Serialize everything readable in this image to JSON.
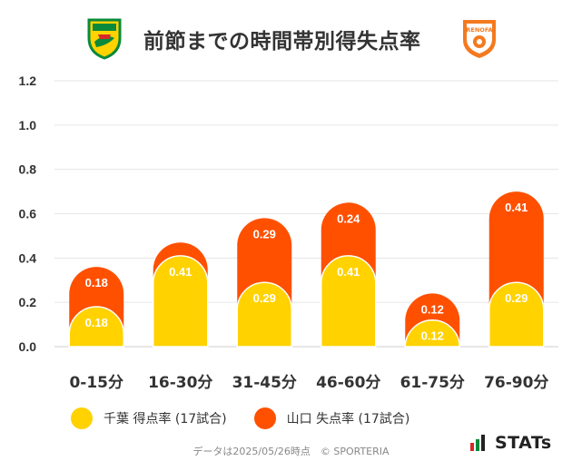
{
  "header": {
    "title": "前節までの時間帯別得失点率"
  },
  "logos": {
    "left_icon": "jef-united-crest-icon",
    "right_icon": "renofa-yamaguchi-crest-icon",
    "right_text": "RENOFA"
  },
  "legend": {
    "items": [
      {
        "label": "千葉 得点率 (17試合)",
        "color": "#FFD200"
      },
      {
        "label": "山口 失点率 (17試合)",
        "color": "#FF5000"
      }
    ]
  },
  "footer": {
    "text": "データは2025/05/26時点　© SPORTERIA"
  },
  "brand": {
    "text": "STATs",
    "icon": "stats-bars-icon"
  },
  "chart_data": {
    "type": "bar",
    "stacked": true,
    "categories": [
      "0-15分",
      "16-30分",
      "31-45分",
      "46-60分",
      "61-75分",
      "76-90分"
    ],
    "series": [
      {
        "name": "千葉 得点率 (17試合)",
        "color": "#FFD200",
        "values": [
          0.18,
          0.41,
          0.29,
          0.41,
          0.12,
          0.29
        ]
      },
      {
        "name": "山口 失点率 (17試合)",
        "color": "#FF5000",
        "values": [
          0.18,
          0.06,
          0.29,
          0.24,
          0.12,
          0.41
        ]
      }
    ],
    "data_labels": [
      [
        "0.18",
        "0.41",
        "0.29",
        "0.41",
        "0.12",
        "0.29"
      ],
      [
        "0.18",
        "",
        "0.29",
        "0.24",
        "0.12",
        "0.41"
      ]
    ],
    "y_ticks": [
      "0.0",
      "0.2",
      "0.4",
      "0.6",
      "0.8",
      "1.0",
      "1.2"
    ],
    "ylim": [
      0,
      1.2
    ],
    "grid": true,
    "legend_position": "bottom"
  }
}
